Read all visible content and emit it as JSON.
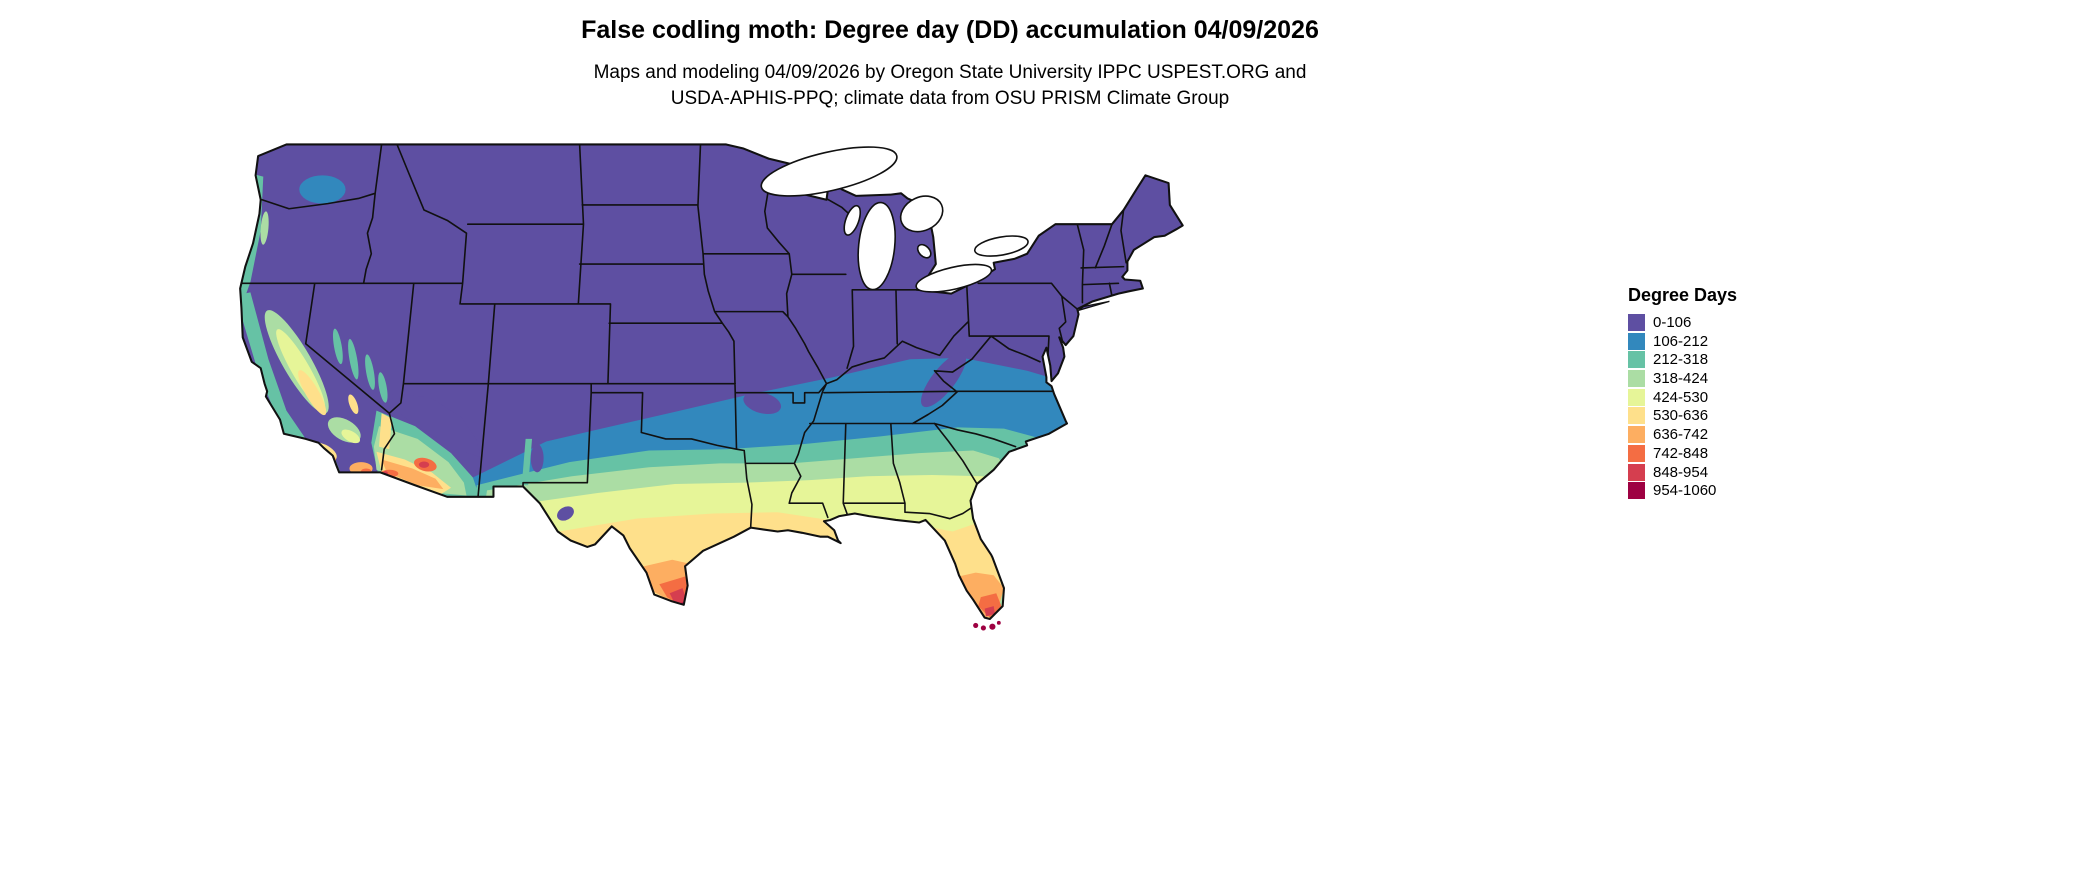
{
  "header": {
    "title": "False codling moth: Degree day (DD) accumulation 04/09/2026",
    "subtitle_line1": "Maps and modeling 04/09/2026 by Oregon State University IPPC USPEST.ORG and",
    "subtitle_line2": "USDA-APHIS-PPQ; climate data from OSU PRISM Climate Group"
  },
  "legend": {
    "title": "Degree Days",
    "classes": [
      {
        "label": "0-106",
        "color": "#5e4fa2"
      },
      {
        "label": "106-212",
        "color": "#3288bd"
      },
      {
        "label": "212-318",
        "color": "#66c2a5"
      },
      {
        "label": "318-424",
        "color": "#abdda4"
      },
      {
        "label": "424-530",
        "color": "#e6f598"
      },
      {
        "label": "530-636",
        "color": "#fee08b"
      },
      {
        "label": "636-742",
        "color": "#fdae61"
      },
      {
        "label": "742-848",
        "color": "#f46d43"
      },
      {
        "label": "848-954",
        "color": "#d53e4f"
      },
      {
        "label": "954-1060",
        "color": "#9e0142"
      }
    ]
  },
  "chart_data": {
    "type": "heatmap",
    "subtype": "choropleth-degree-day-map",
    "title": "False codling moth: Degree day (DD) accumulation 04/09/2026",
    "region": "Conterminous United States with state boundaries",
    "variable": "Degree day (DD) accumulation",
    "date": "04/09/2026",
    "legend_title": "Degree Days",
    "legend_position": "right",
    "value_range": [
      0,
      1060
    ],
    "bins": [
      "0-106",
      "106-212",
      "212-318",
      "318-424",
      "424-530",
      "530-636",
      "636-742",
      "742-848",
      "848-954",
      "954-1060"
    ],
    "bin_colors": [
      "#5e4fa2",
      "#3288bd",
      "#66c2a5",
      "#abdda4",
      "#e6f598",
      "#fee08b",
      "#fdae61",
      "#f46d43",
      "#d53e4f",
      "#9e0142"
    ],
    "pattern_notes": [
      "Northern and central US including Rockies, Midwest, Great Lakes and Northeast: 0-106 (purple)",
      "Band of 106-212 (blue) across southern Kansas/Oklahoma, Arkansas, Tennessee to Virginia/North Carolina",
      "212-424 (teal/green) across north Texas, Gulf states interior, Georgia and coastal Carolinas",
      "424-636 (yellow-green/yellow) across central-south Texas, Gulf coast, north-central Florida",
      "636-848 (orange) in far south Texas, south Florida, Phoenix/Yuma Arizona and SE California deserts",
      "848-1060 (red/maroon) at Texas Rio Grande tip and Florida Keys",
      "California Central Valley green-yellow; Pacific Northwest coast thin teal strip; Nevada basins teal streaks"
    ]
  }
}
